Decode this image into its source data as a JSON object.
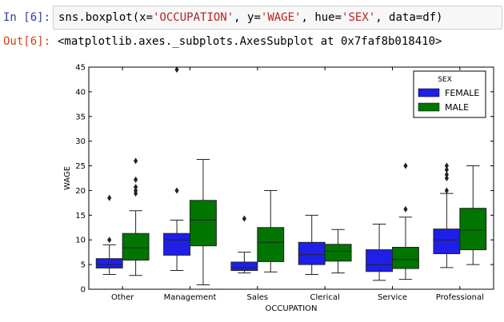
{
  "notebook": {
    "in_prompt": "In [6]:",
    "out_prompt": "Out[6]:",
    "code_parts": [
      {
        "text": "sns.boxplot(x=",
        "kind": "plain"
      },
      {
        "text": "'OCCUPATION'",
        "kind": "string"
      },
      {
        "text": ", y=",
        "kind": "plain"
      },
      {
        "text": "'WAGE'",
        "kind": "string"
      },
      {
        "text": ", hue=",
        "kind": "plain"
      },
      {
        "text": "'SEX'",
        "kind": "string"
      },
      {
        "text": ", data=df)",
        "kind": "plain"
      }
    ],
    "output_text": "<matplotlib.axes._subplots.AxesSubplot at 0x7faf8b018410>"
  },
  "chart_data": {
    "type": "box",
    "xlabel": "OCCUPATION",
    "ylabel": "WAGE",
    "ylim": [
      0,
      45
    ],
    "yticks": [
      0,
      5,
      10,
      15,
      20,
      25,
      30,
      35,
      40,
      45
    ],
    "categories": [
      "Other",
      "Management",
      "Sales",
      "Clerical",
      "Service",
      "Professional"
    ],
    "legend": {
      "title": "SEX",
      "placement": "top-right"
    },
    "series": [
      {
        "name": "FEMALE",
        "color": "#1f1fe8",
        "boxes": [
          {
            "whislo": 3.0,
            "q1": 4.3,
            "med": 5.0,
            "q3": 6.2,
            "whishi": 9.0,
            "fliers": [
              10.0,
              18.5
            ]
          },
          {
            "whislo": 3.8,
            "q1": 6.9,
            "med": 10.0,
            "q3": 11.3,
            "whishi": 14.0,
            "fliers": [
              20.0,
              44.5
            ]
          },
          {
            "whislo": 3.3,
            "q1": 3.8,
            "med": 4.4,
            "q3": 5.5,
            "whishi": 7.5,
            "fliers": [
              14.3
            ]
          },
          {
            "whislo": 3.0,
            "q1": 5.0,
            "med": 7.0,
            "q3": 9.5,
            "whishi": 15.0,
            "fliers": []
          },
          {
            "whislo": 1.8,
            "q1": 3.6,
            "med": 5.0,
            "q3": 8.0,
            "whishi": 13.2,
            "fliers": []
          },
          {
            "whislo": 4.4,
            "q1": 7.2,
            "med": 10.0,
            "q3": 12.2,
            "whishi": 19.4,
            "fliers": [
              20.0,
              22.5,
              23.2,
              24.2,
              25.0
            ]
          }
        ]
      },
      {
        "name": "MALE",
        "color": "#007500",
        "boxes": [
          {
            "whislo": 2.8,
            "q1": 5.9,
            "med": 8.4,
            "q3": 11.3,
            "whishi": 15.9,
            "fliers": [
              19.4,
              20.0,
              20.7,
              22.2,
              26.0
            ]
          },
          {
            "whislo": 0.9,
            "q1": 8.8,
            "med": 14.0,
            "q3": 18.0,
            "whishi": 26.3,
            "fliers": []
          },
          {
            "whislo": 3.5,
            "q1": 5.6,
            "med": 9.5,
            "q3": 12.5,
            "whishi": 20.0,
            "fliers": []
          },
          {
            "whislo": 3.3,
            "q1": 5.7,
            "med": 7.7,
            "q3": 9.1,
            "whishi": 12.1,
            "fliers": []
          },
          {
            "whislo": 2.0,
            "q1": 4.2,
            "med": 6.0,
            "q3": 8.5,
            "whishi": 14.6,
            "fliers": [
              16.2,
              25.0
            ]
          },
          {
            "whislo": 5.0,
            "q1": 8.0,
            "med": 12.0,
            "q3": 16.4,
            "whishi": 25.0,
            "fliers": []
          }
        ]
      }
    ]
  }
}
